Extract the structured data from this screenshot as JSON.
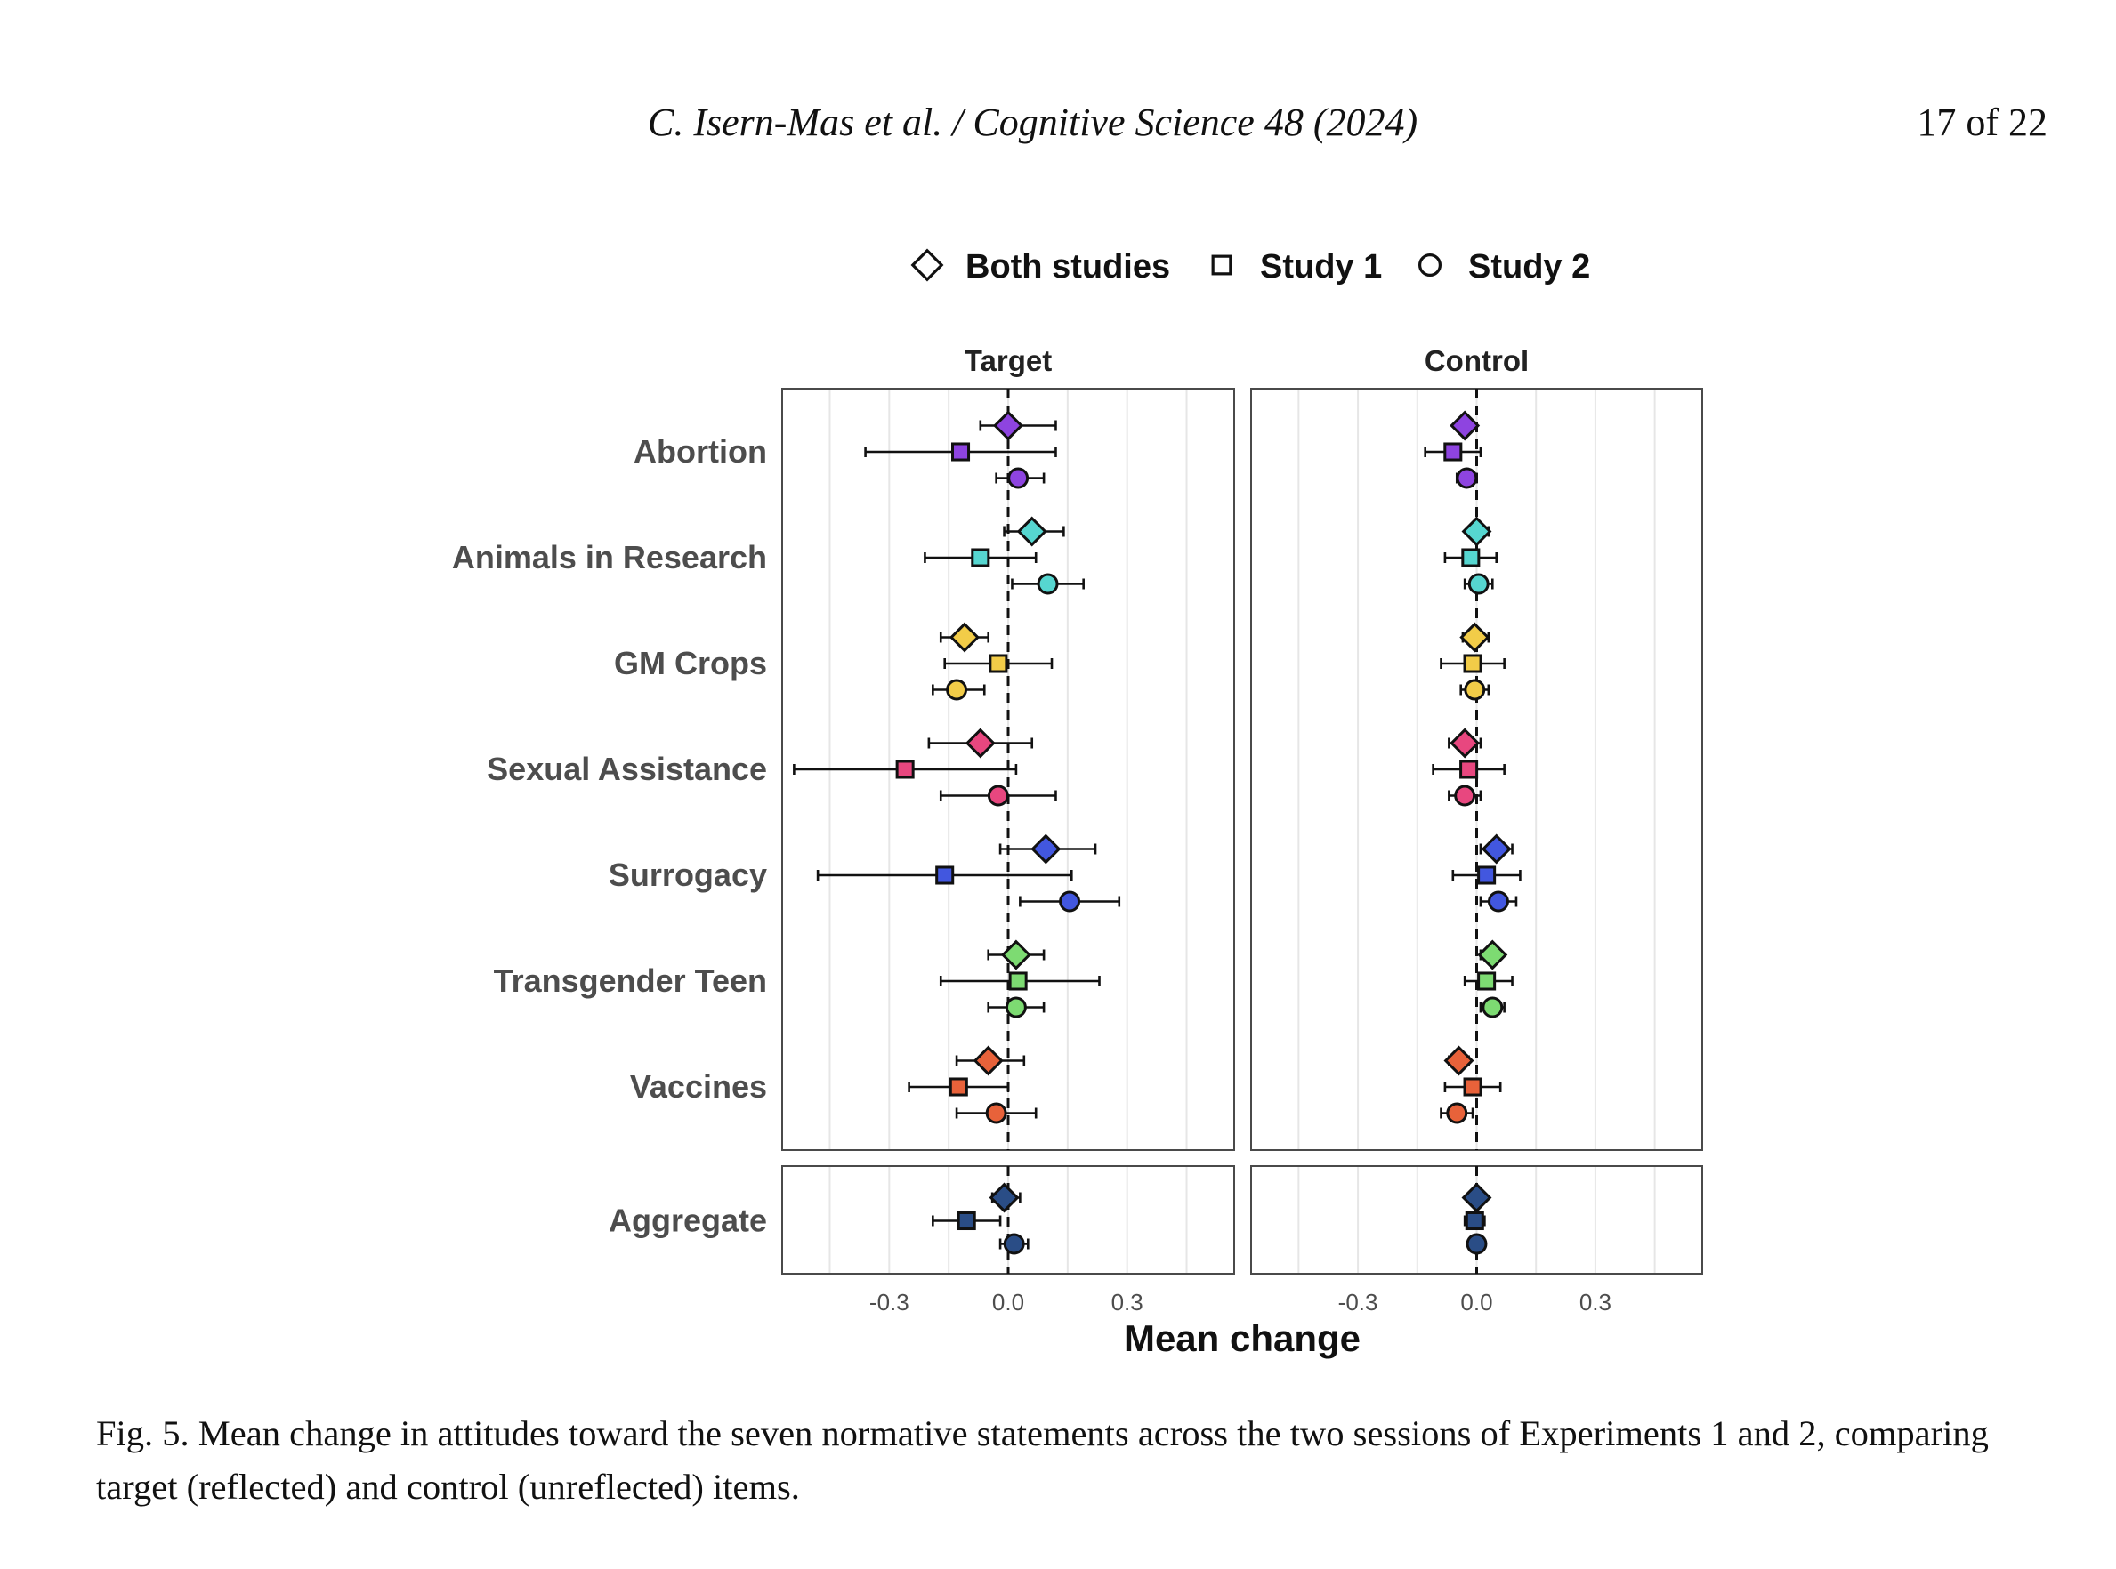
{
  "header": {
    "citation": "C. Isern-Mas et al. / Cognitive Science  48 (2024)",
    "page": "17 of 22"
  },
  "figure": {
    "caption": "Fig. 5. Mean change in attitudes toward the seven normative statements across the two sessions of Experiments 1 and 2, comparing target (reflected) and control (unreflected) items."
  },
  "chart_data": {
    "type": "forest",
    "legend": [
      {
        "name": "Both studies",
        "shape": "diamond"
      },
      {
        "name": "Study 1",
        "shape": "square"
      },
      {
        "name": "Study 2",
        "shape": "circle"
      }
    ],
    "panels": [
      "Target",
      "Control"
    ],
    "xlabel": "Mean change",
    "xlim": [
      -0.57,
      0.57
    ],
    "xticks": [
      "-0.3",
      "0.0",
      "0.3"
    ],
    "xtick_values": [
      -0.3,
      0.0,
      0.3
    ],
    "reference_line": 0.0,
    "items": [
      {
        "label": "Abortion",
        "color": "#8e44e0",
        "target": [
          [
            0.0,
            -0.07,
            0.12
          ],
          [
            -0.12,
            -0.36,
            0.12
          ],
          [
            0.025,
            -0.03,
            0.09
          ]
        ],
        "control": [
          [
            -0.03,
            -0.05,
            -0.01
          ],
          [
            -0.06,
            -0.13,
            0.01
          ],
          [
            -0.025,
            -0.05,
            0.0
          ]
        ]
      },
      {
        "label": "Animals in Research",
        "color": "#56d6d0",
        "target": [
          [
            0.06,
            -0.01,
            0.14
          ],
          [
            -0.07,
            -0.21,
            0.07
          ],
          [
            0.1,
            0.01,
            0.19
          ]
        ],
        "control": [
          [
            0.0,
            -0.02,
            0.03
          ],
          [
            -0.015,
            -0.08,
            0.05
          ],
          [
            0.005,
            -0.03,
            0.04
          ]
        ]
      },
      {
        "label": "GM Crops",
        "color": "#f2cc48",
        "target": [
          [
            -0.11,
            -0.17,
            -0.05
          ],
          [
            -0.025,
            -0.16,
            0.11
          ],
          [
            -0.13,
            -0.19,
            -0.06
          ]
        ],
        "control": [
          [
            -0.005,
            -0.035,
            0.03
          ],
          [
            -0.01,
            -0.09,
            0.07
          ],
          [
            -0.005,
            -0.04,
            0.03
          ]
        ]
      },
      {
        "label": "Sexual Assistance",
        "color": "#e8477f",
        "target": [
          [
            -0.07,
            -0.2,
            0.06
          ],
          [
            -0.26,
            -0.54,
            0.02
          ],
          [
            -0.025,
            -0.17,
            0.12
          ]
        ],
        "control": [
          [
            -0.03,
            -0.07,
            0.01
          ],
          [
            -0.02,
            -0.11,
            0.07
          ],
          [
            -0.03,
            -0.07,
            0.01
          ]
        ]
      },
      {
        "label": "Surrogacy",
        "color": "#4257df",
        "target": [
          [
            0.095,
            -0.02,
            0.22
          ],
          [
            -0.16,
            -0.48,
            0.16
          ],
          [
            0.155,
            0.03,
            0.28
          ]
        ],
        "control": [
          [
            0.05,
            0.01,
            0.09
          ],
          [
            0.025,
            -0.06,
            0.11
          ],
          [
            0.055,
            0.01,
            0.1
          ]
        ]
      },
      {
        "label": "Transgender Teen",
        "color": "#7ddb72",
        "target": [
          [
            0.02,
            -0.05,
            0.09
          ],
          [
            0.025,
            -0.17,
            0.23
          ],
          [
            0.02,
            -0.05,
            0.09
          ]
        ],
        "control": [
          [
            0.04,
            0.01,
            0.06
          ],
          [
            0.025,
            -0.03,
            0.09
          ],
          [
            0.04,
            0.01,
            0.07
          ]
        ]
      },
      {
        "label": "Vaccines",
        "color": "#e8623a",
        "target": [
          [
            -0.05,
            -0.13,
            0.04
          ],
          [
            -0.125,
            -0.25,
            0.0
          ],
          [
            -0.03,
            -0.13,
            0.07
          ]
        ],
        "control": [
          [
            -0.045,
            -0.07,
            -0.02
          ],
          [
            -0.01,
            -0.08,
            0.06
          ],
          [
            -0.05,
            -0.09,
            -0.01
          ]
        ]
      }
    ],
    "aggregate": {
      "label": "Aggregate",
      "color": "#2a4d86",
      "target": [
        [
          -0.01,
          -0.04,
          0.03
        ],
        [
          -0.105,
          -0.19,
          -0.02
        ],
        [
          0.015,
          -0.02,
          0.05
        ]
      ],
      "control": [
        [
          0.0,
          -0.01,
          0.01
        ],
        [
          -0.005,
          -0.03,
          0.02
        ],
        [
          0.0,
          0.0,
          0.0
        ]
      ]
    }
  }
}
